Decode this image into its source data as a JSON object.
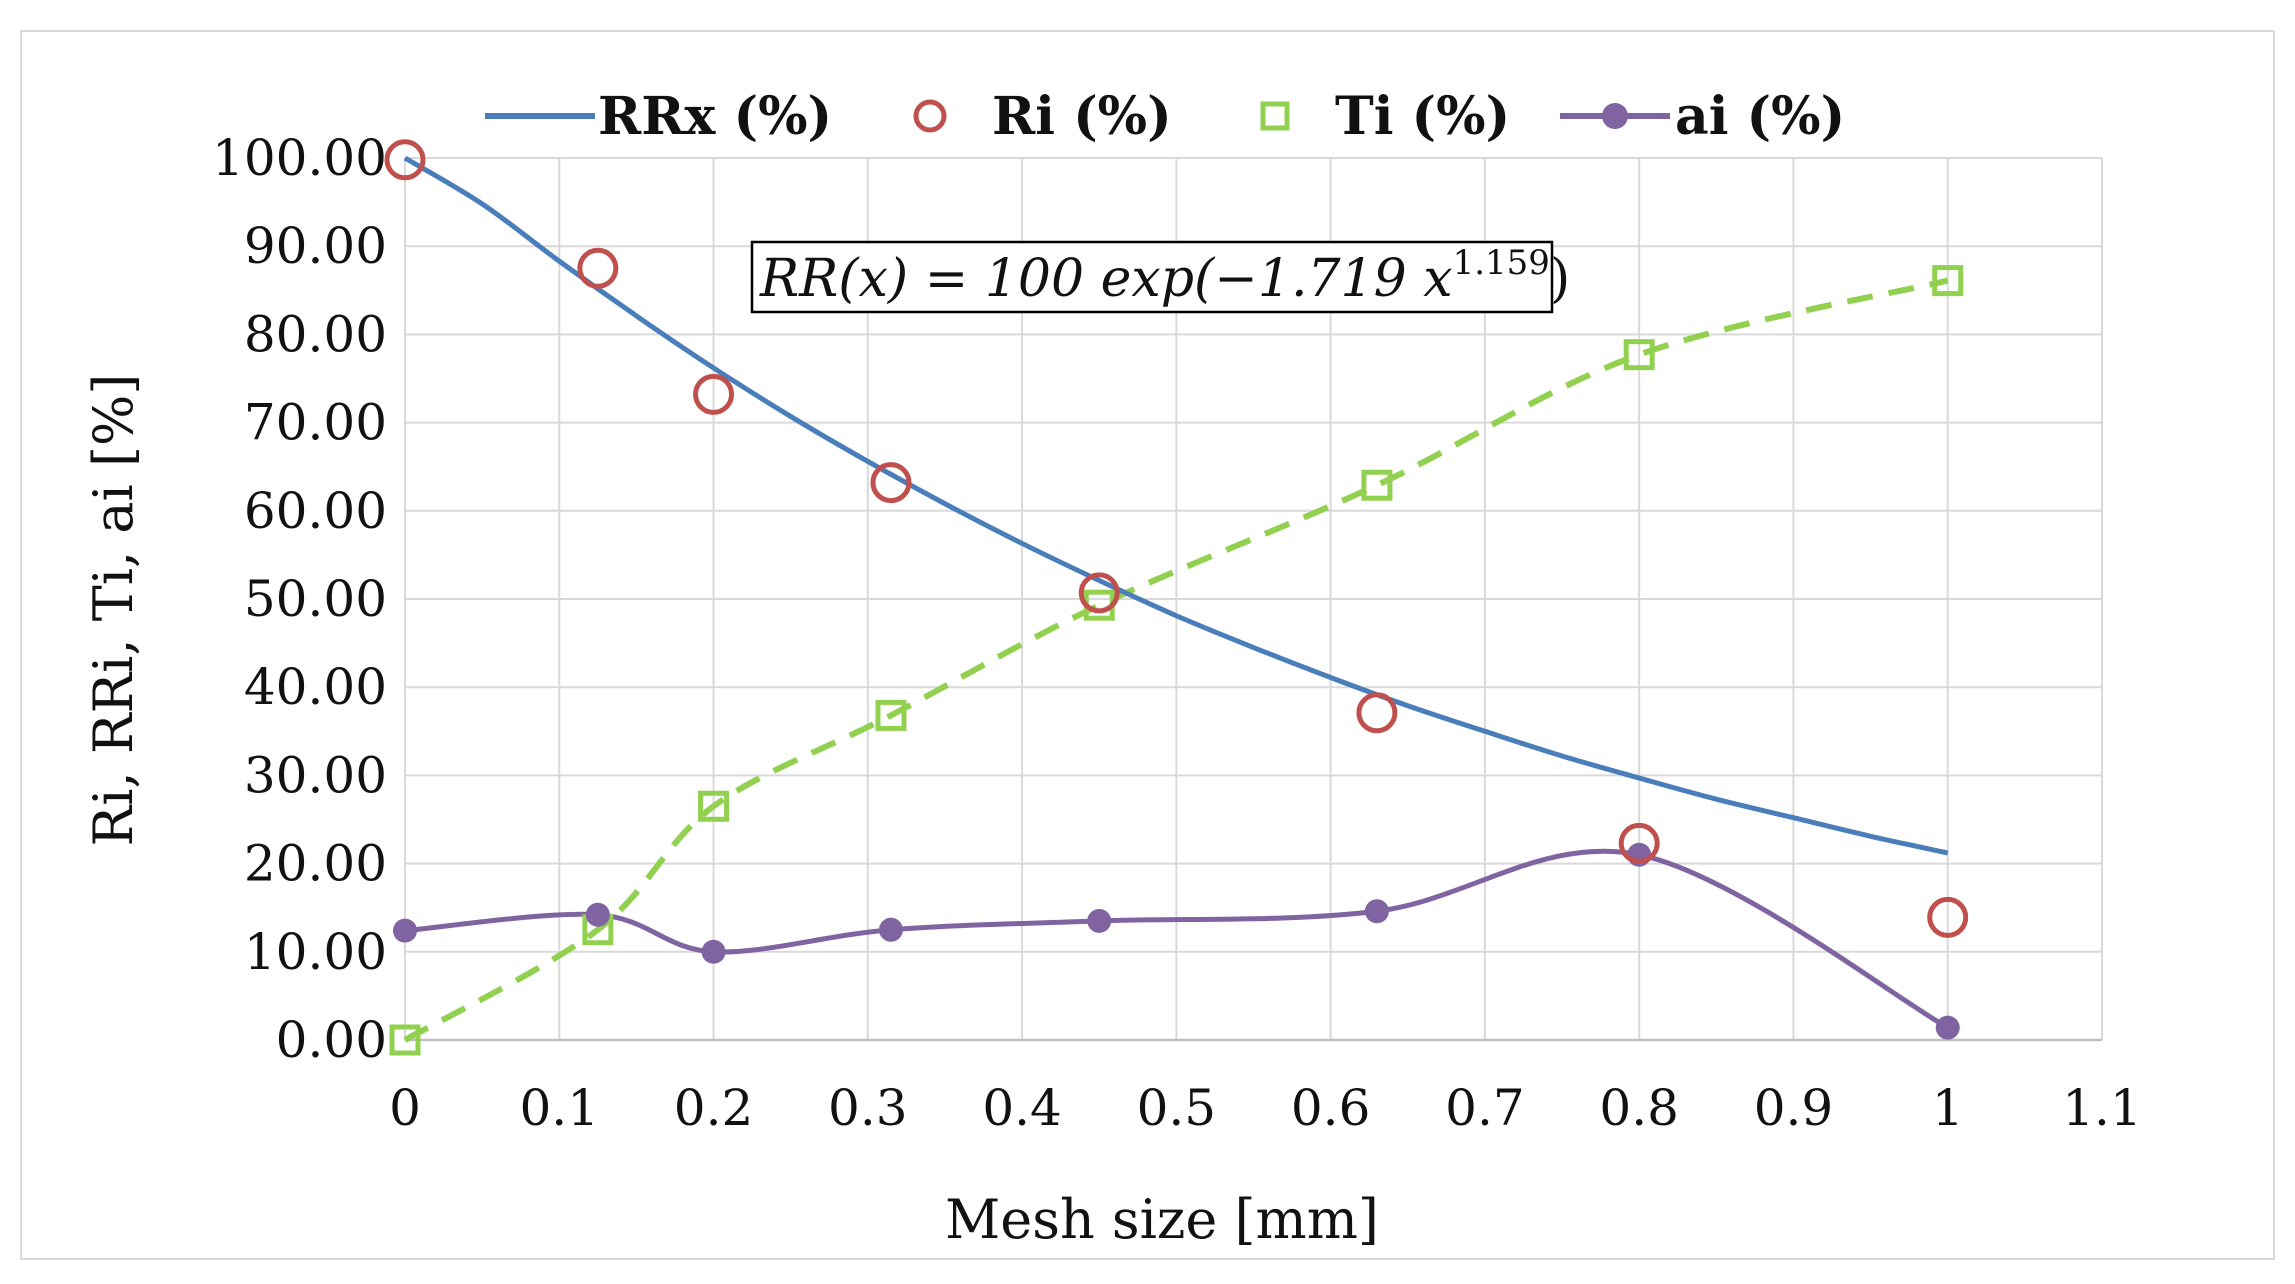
{
  "chart_data": {
    "type": "line",
    "title": "",
    "xlabel": "Mesh size [mm]",
    "ylabel": "Ri, RRi, Ti, ai [%]",
    "xlim": [
      0,
      1.1
    ],
    "ylim": [
      0,
      100
    ],
    "x_ticks": [
      "0",
      "0.1",
      "0.2",
      "0.3",
      "0.4",
      "0.5",
      "0.6",
      "0.7",
      "0.8",
      "0.9",
      "1",
      "1.1"
    ],
    "y_ticks": [
      "0.00",
      "10.00",
      "20.00",
      "30.00",
      "40.00",
      "50.00",
      "60.00",
      "70.00",
      "80.00",
      "90.00",
      "100.00"
    ],
    "grid": true,
    "legend_position": "top",
    "annotation": {
      "main": "RR(x) = 100 exp(−1.719 x",
      "exponent": "1.159",
      "close": ")"
    },
    "series": [
      {
        "name": "RRx (%)",
        "style": "line",
        "color": "#4a7ebb",
        "x": [
          0,
          0.05,
          0.1,
          0.15,
          0.2,
          0.25,
          0.3,
          0.35,
          0.4,
          0.45,
          0.5,
          0.55,
          0.6,
          0.65,
          0.7,
          0.75,
          0.8,
          0.85,
          0.9,
          0.95,
          1.0
        ],
        "values": [
          100,
          94.8,
          88.3,
          82.1,
          76.2,
          70.7,
          65.6,
          60.8,
          56.3,
          52.1,
          48.1,
          44.5,
          41.1,
          37.9,
          35.0,
          32.2,
          29.7,
          27.3,
          25.2,
          23.1,
          21.2
        ]
      },
      {
        "name": "Ri (%)",
        "style": "marker-circle",
        "color": "#c0504d",
        "x": [
          0,
          0.125,
          0.2,
          0.315,
          0.45,
          0.63,
          0.8,
          1.0
        ],
        "values": [
          99.8,
          87.5,
          73.2,
          63.2,
          50.7,
          37.1,
          22.3,
          13.9
        ]
      },
      {
        "name": "Ti (%)",
        "style": "marker-square-dashed",
        "color": "#92d050",
        "x": [
          0,
          0.125,
          0.2,
          0.315,
          0.45,
          0.63,
          0.8,
          1.0
        ],
        "values": [
          0,
          12.5,
          26.5,
          36.8,
          49.3,
          62.9,
          77.7,
          86.1
        ]
      },
      {
        "name": "ai (%)",
        "style": "line-marker-dot",
        "color": "#8064a2",
        "x": [
          0,
          0.125,
          0.2,
          0.315,
          0.45,
          0.63,
          0.8,
          1.0
        ],
        "values": [
          12.4,
          14.2,
          10.0,
          12.5,
          13.5,
          14.6,
          21.0,
          1.4
        ]
      }
    ]
  }
}
